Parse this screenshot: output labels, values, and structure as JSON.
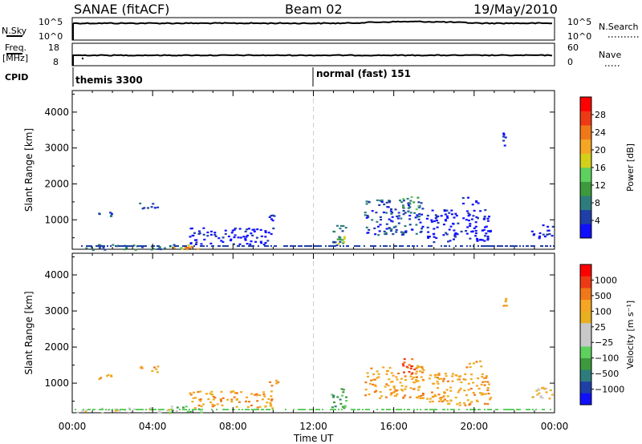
{
  "header": {
    "station": "SANAE (fitACF)",
    "beam": "Beam 02",
    "date": "19/May/2010"
  },
  "strips": {
    "nsky_label": "N.Sky",
    "nsky_ticks": [
      "10^5",
      "10^0"
    ],
    "nsearch_label": "N.Search",
    "nsearch_ticks": [
      "10^5",
      "10^0"
    ],
    "freq_label": "Freq.",
    "freq_unit": "[MHz]",
    "freq_ticks": [
      "18",
      "8"
    ],
    "nave_label": "Nave",
    "nave_ticks": [
      "60",
      "0"
    ],
    "cpid_label": "CPID",
    "cpid_segments": [
      {
        "label": "themis 3300",
        "start_hour": 0
      },
      {
        "label": "normal (fast) 151",
        "start_hour": 12
      }
    ]
  },
  "chart_data": [
    {
      "type": "heatmap",
      "name": "power",
      "ylabel": "Slant Range [km]",
      "xlabel": "Time UT",
      "xlim": [
        0,
        24
      ],
      "ylim": [
        180,
        4600
      ],
      "yticks": [
        1000,
        2000,
        3000,
        4000
      ],
      "colorbar": {
        "label": "Power [dB]",
        "ticks": [
          "4",
          "8",
          "12",
          "16",
          "20",
          "24",
          "28"
        ],
        "colors": [
          "#1010ff",
          "#1f3fa8",
          "#2e7d7d",
          "#3c9a3c",
          "#5ed05e",
          "#d4d01a",
          "#f5a623",
          "#f07818",
          "#ee3a14",
          "#ff0000"
        ]
      },
      "patches": [
        {
          "t": [
            0.2,
            5.2
          ],
          "r": [
            180,
            330
          ],
          "level": 2
        },
        {
          "t": [
            4.8,
            6.4
          ],
          "r": [
            200,
            330
          ],
          "level": 5
        },
        {
          "t": [
            5.5,
            6.0
          ],
          "r": [
            230,
            280
          ],
          "level": 7
        },
        {
          "t": [
            1.2,
            2.0
          ],
          "r": [
            1100,
            1250
          ],
          "level": 1
        },
        {
          "t": [
            3.3,
            4.3
          ],
          "r": [
            1300,
            1500
          ],
          "level": 1
        },
        {
          "t": [
            5.8,
            10.0
          ],
          "r": [
            330,
            800
          ],
          "level": 0
        },
        {
          "t": [
            9.6,
            10.2
          ],
          "r": [
            950,
            1150
          ],
          "level": 1
        },
        {
          "t": [
            12.8,
            13.6
          ],
          "r": [
            300,
            900
          ],
          "level": 2
        },
        {
          "t": [
            13.2,
            13.5
          ],
          "r": [
            350,
            600
          ],
          "level": 4
        },
        {
          "t": [
            14.5,
            17.5
          ],
          "r": [
            600,
            1600
          ],
          "level": 1
        },
        {
          "t": [
            16.4,
            17.2
          ],
          "r": [
            1300,
            1700
          ],
          "level": 3
        },
        {
          "t": [
            17.6,
            20.8
          ],
          "r": [
            400,
            1300
          ],
          "level": 0
        },
        {
          "t": [
            19.4,
            20.3
          ],
          "r": [
            1450,
            1650
          ],
          "level": 0
        },
        {
          "t": [
            22.8,
            23.9
          ],
          "r": [
            500,
            900
          ],
          "level": 0
        },
        {
          "t": [
            21.4,
            21.6
          ],
          "r": [
            3050,
            3450
          ],
          "level": 0
        }
      ]
    },
    {
      "type": "heatmap",
      "name": "velocity",
      "ylabel": "Slant Range [km]",
      "xlabel": "Time UT",
      "xlim": [
        0,
        24
      ],
      "ylim": [
        180,
        4600
      ],
      "yticks": [
        1000,
        2000,
        3000,
        4000
      ],
      "colorbar": {
        "label": "Velocity [m s⁻¹]",
        "ticks": [
          "1000",
          "500",
          "100",
          "25",
          "−25",
          "−100",
          "−500",
          "−1000"
        ],
        "colors": [
          "#1010ff",
          "#1f3fa8",
          "#2e7d7d",
          "#3c9a3c",
          "#5ed05e",
          "#c8c8c8",
          "#c8c8c8",
          "#e8b020",
          "#f5a623",
          "#f07818",
          "#ee3a14",
          "#ff0000"
        ]
      },
      "patches": [
        {
          "t": [
            0.2,
            5.0
          ],
          "r": [
            180,
            330
          ],
          "level": 6
        },
        {
          "t": [
            4.8,
            6.4
          ],
          "r": [
            200,
            380
          ],
          "level": 4
        },
        {
          "t": [
            1.2,
            2.0
          ],
          "r": [
            1100,
            1250
          ],
          "level": 8
        },
        {
          "t": [
            3.3,
            4.3
          ],
          "r": [
            1300,
            1500
          ],
          "level": 8
        },
        {
          "t": [
            5.8,
            10.0
          ],
          "r": [
            330,
            800
          ],
          "level": 8
        },
        {
          "t": [
            9.6,
            10.2
          ],
          "r": [
            950,
            1150
          ],
          "level": 8
        },
        {
          "t": [
            12.8,
            13.6
          ],
          "r": [
            300,
            900
          ],
          "level": 3
        },
        {
          "t": [
            14.5,
            17.5
          ],
          "r": [
            600,
            1500
          ],
          "level": 8
        },
        {
          "t": [
            16.4,
            17.2
          ],
          "r": [
            1300,
            1700
          ],
          "level": 10
        },
        {
          "t": [
            17.6,
            20.8
          ],
          "r": [
            400,
            1300
          ],
          "level": 8
        },
        {
          "t": [
            19.4,
            20.3
          ],
          "r": [
            1450,
            1650
          ],
          "level": 8
        },
        {
          "t": [
            22.8,
            23.9
          ],
          "r": [
            500,
            900
          ],
          "level": 7
        },
        {
          "t": [
            21.4,
            21.6
          ],
          "r": [
            3050,
            3450
          ],
          "level": 8
        }
      ]
    }
  ],
  "xaxis": {
    "ticks": [
      "00:00",
      "04:00",
      "08:00",
      "12:00",
      "16:00",
      "20:00",
      "00:00"
    ],
    "label": "Time UT"
  }
}
